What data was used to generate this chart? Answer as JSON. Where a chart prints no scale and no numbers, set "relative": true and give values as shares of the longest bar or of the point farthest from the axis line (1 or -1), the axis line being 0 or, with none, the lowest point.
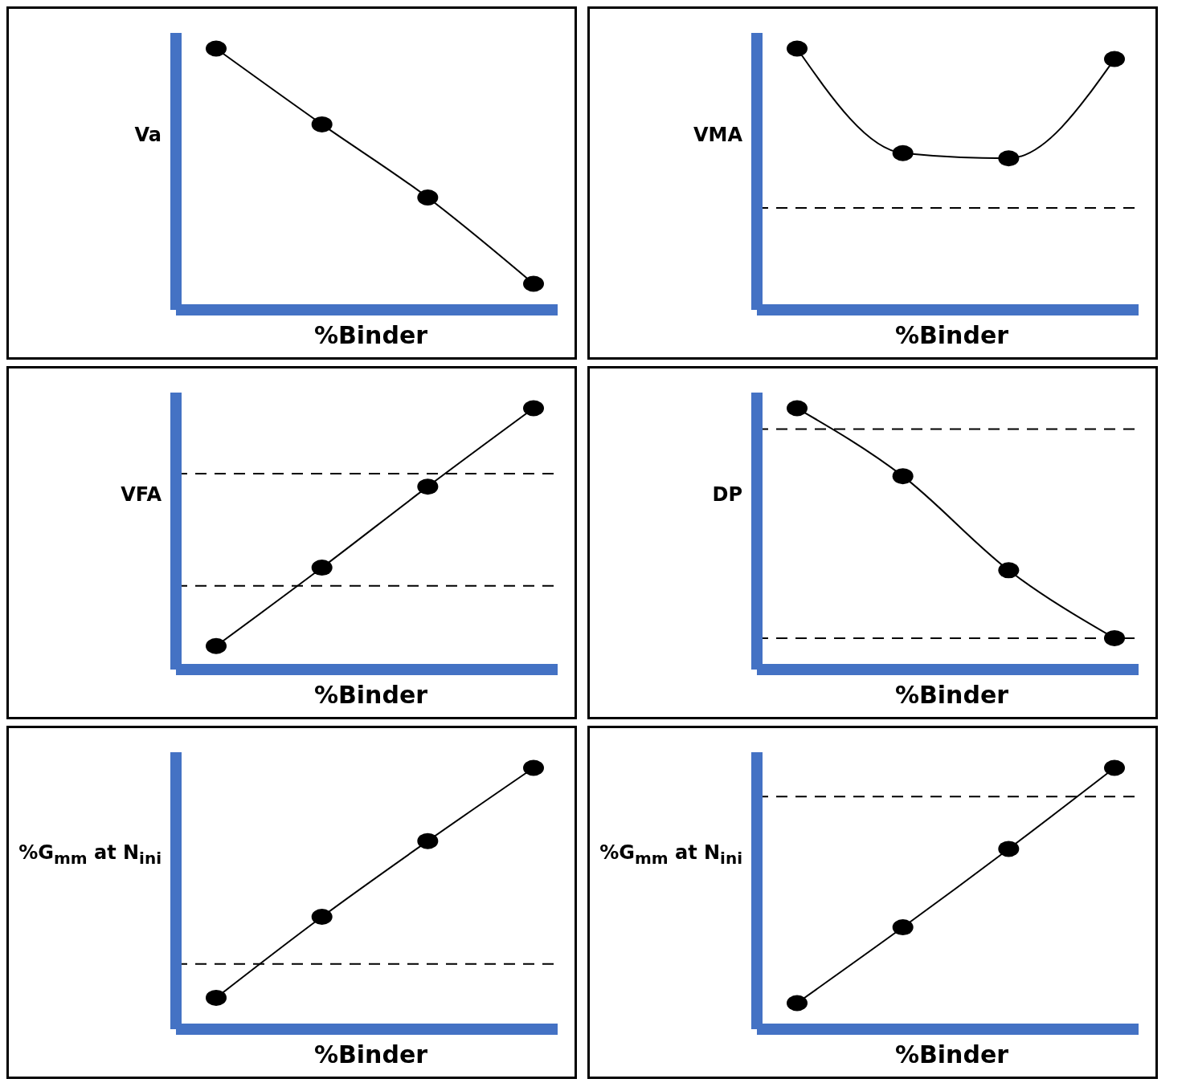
{
  "chart_data": [
    {
      "type": "line",
      "xlabel": "%Binder",
      "ylabel": "Va",
      "relative": true,
      "categories": [
        null,
        null,
        null,
        null
      ],
      "values": [
        1,
        0.71,
        0.43,
        0.1
      ],
      "color": "#000000",
      "marker": "circle",
      "line_style": "solid"
    },
    {
      "type": "line",
      "xlabel": "%Binder",
      "ylabel": "VMA",
      "relative": true,
      "categories": [
        null,
        null,
        null,
        null
      ],
      "values": [
        1,
        0.6,
        0.58,
        0.96
      ],
      "color": "#000000",
      "marker": "circle",
      "line_style": "solid",
      "ref_lines": [
        {
          "axis": "y",
          "value": 0.39,
          "line_style": "dashed",
          "color": "#000000"
        }
      ]
    },
    {
      "type": "line",
      "xlabel": "%Binder",
      "ylabel": "VFA",
      "relative": true,
      "categories": [
        null,
        null,
        null,
        null
      ],
      "values": [
        0.09,
        0.39,
        0.7,
        1
      ],
      "color": "#000000",
      "marker": "circle",
      "line_style": "solid",
      "ref_lines": [
        {
          "axis": "y",
          "value": 0.75,
          "line_style": "dashed",
          "color": "#000000"
        },
        {
          "axis": "y",
          "value": 0.32,
          "line_style": "dashed",
          "color": "#000000"
        }
      ]
    },
    {
      "type": "line",
      "xlabel": "%Binder",
      "ylabel": "DP",
      "relative": true,
      "categories": [
        null,
        null,
        null,
        null
      ],
      "values": [
        1,
        0.74,
        0.38,
        0.12
      ],
      "color": "#000000",
      "marker": "circle",
      "line_style": "solid",
      "ref_lines": [
        {
          "axis": "y",
          "value": 0.92,
          "line_style": "dashed",
          "color": "#000000"
        },
        {
          "axis": "y",
          "value": 0.12,
          "line_style": "dashed",
          "color": "#000000"
        }
      ]
    },
    {
      "type": "line",
      "xlabel": "%Binder",
      "ylabel": "%G$_{mm}$ at N$_{ini}$",
      "relative": true,
      "categories": [
        null,
        null,
        null,
        null
      ],
      "values": [
        0.12,
        0.43,
        0.72,
        1
      ],
      "color": "#000000",
      "marker": "circle",
      "line_style": "solid",
      "ref_lines": [
        {
          "axis": "y",
          "value": 0.25,
          "line_style": "dashed",
          "color": "#000000"
        }
      ]
    },
    {
      "type": "line",
      "xlabel": "%Binder",
      "ylabel": "%G$_{mm}$ at N$_{ini}$",
      "relative": true,
      "categories": [
        null,
        null,
        null,
        null
      ],
      "values": [
        0.1,
        0.39,
        0.69,
        1
      ],
      "color": "#000000",
      "marker": "circle",
      "line_style": "solid",
      "ref_lines": [
        {
          "axis": "y",
          "value": 0.89,
          "line_style": "dashed",
          "color": "#000000"
        }
      ]
    }
  ]
}
